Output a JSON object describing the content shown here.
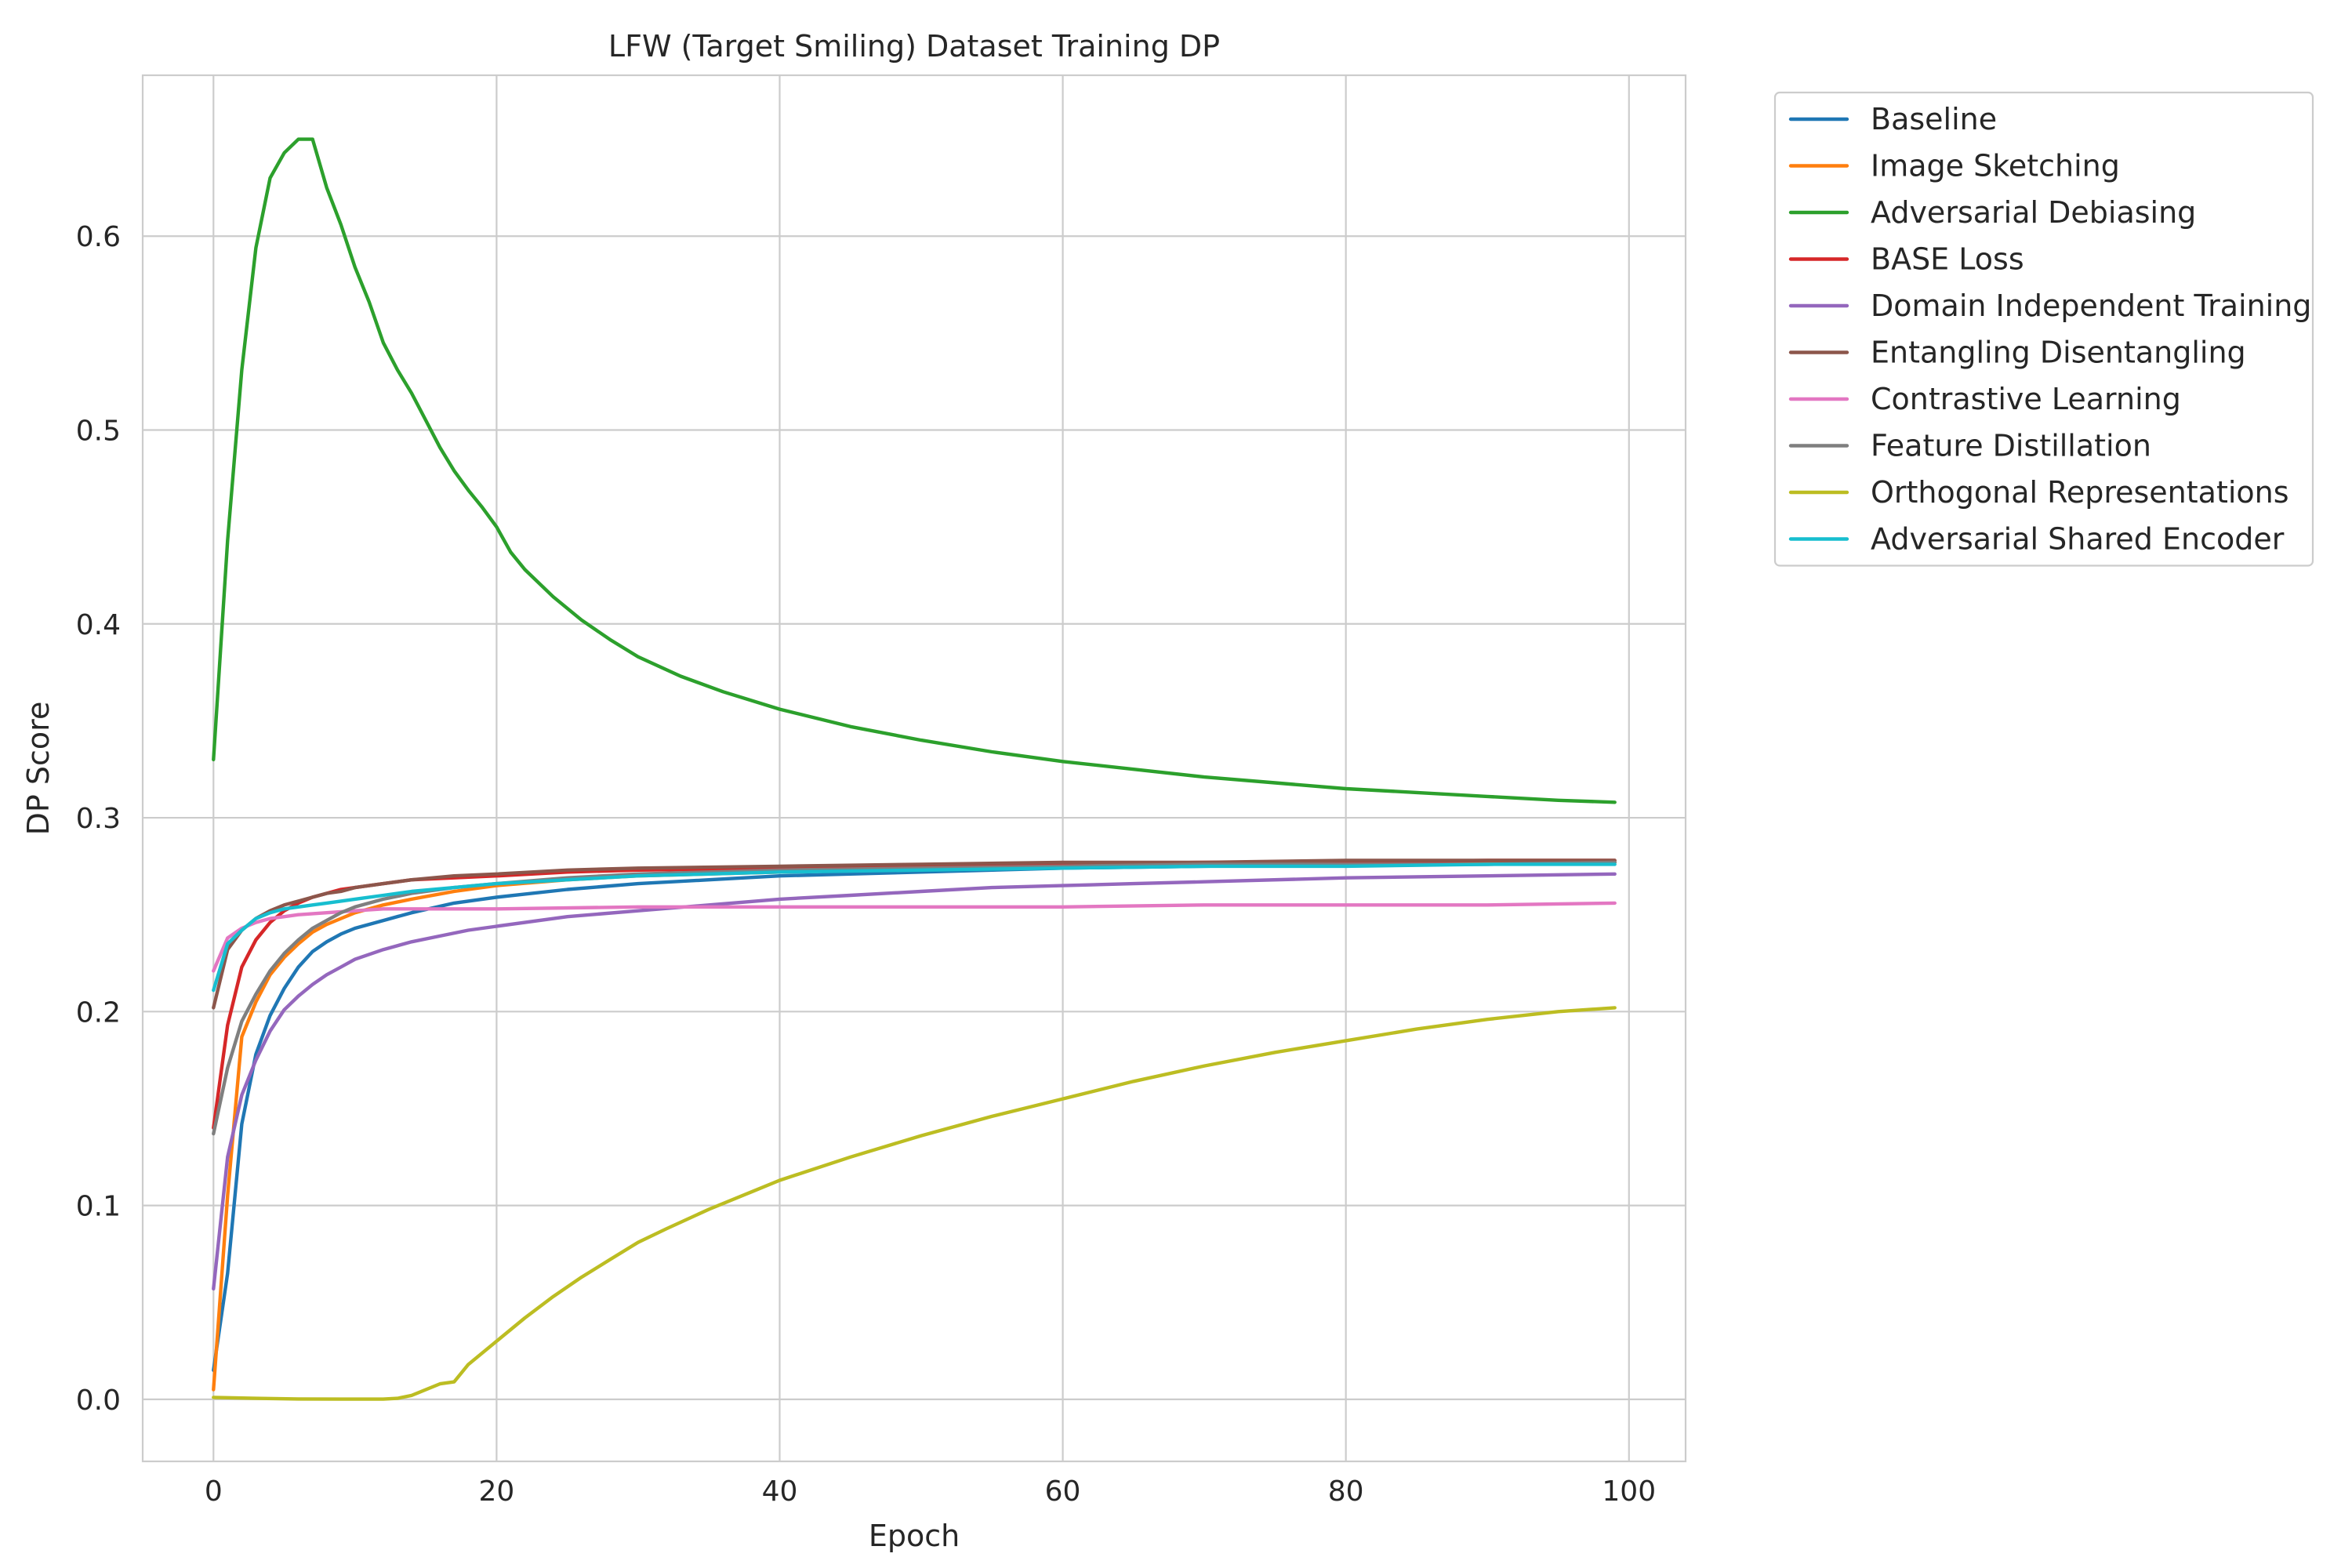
{
  "chart_data": {
    "type": "line",
    "title": "LFW (Target Smiling) Dataset Training DP",
    "xlabel": "Epoch",
    "ylabel": "DP Score",
    "xlim": [
      -5,
      104
    ],
    "ylim": [
      -0.032,
      0.683
    ],
    "xticks": [
      0,
      20,
      40,
      60,
      80,
      100
    ],
    "yticks": [
      0.0,
      0.1,
      0.2,
      0.3,
      0.4,
      0.5,
      0.6
    ],
    "ytick_labels": [
      "0.0",
      "0.1",
      "0.2",
      "0.3",
      "0.4",
      "0.5",
      "0.6"
    ],
    "grid": true,
    "legend_position": "outside-top-right",
    "series": [
      {
        "name": "Baseline",
        "color": "#1f77b4",
        "points": [
          [
            0,
            0.015
          ],
          [
            1,
            0.065
          ],
          [
            2,
            0.142
          ],
          [
            3,
            0.178
          ],
          [
            4,
            0.198
          ],
          [
            5,
            0.212
          ],
          [
            6,
            0.223
          ],
          [
            7,
            0.231
          ],
          [
            8,
            0.236
          ],
          [
            9,
            0.24
          ],
          [
            10,
            0.243
          ],
          [
            12,
            0.247
          ],
          [
            14,
            0.251
          ],
          [
            17,
            0.256
          ],
          [
            20,
            0.259
          ],
          [
            25,
            0.263
          ],
          [
            30,
            0.266
          ],
          [
            35,
            0.268
          ],
          [
            40,
            0.27
          ],
          [
            50,
            0.272
          ],
          [
            60,
            0.274
          ],
          [
            70,
            0.275
          ],
          [
            80,
            0.276
          ],
          [
            90,
            0.276
          ],
          [
            99,
            0.277
          ]
        ]
      },
      {
        "name": "Image Sketching",
        "color": "#ff7f0e",
        "points": [
          [
            0,
            0.005
          ],
          [
            1,
            0.105
          ],
          [
            2,
            0.187
          ],
          [
            3,
            0.205
          ],
          [
            4,
            0.219
          ],
          [
            5,
            0.228
          ],
          [
            6,
            0.235
          ],
          [
            7,
            0.241
          ],
          [
            8,
            0.245
          ],
          [
            9,
            0.248
          ],
          [
            10,
            0.251
          ],
          [
            12,
            0.255
          ],
          [
            14,
            0.258
          ],
          [
            17,
            0.262
          ],
          [
            20,
            0.265
          ],
          [
            25,
            0.268
          ],
          [
            30,
            0.27
          ],
          [
            35,
            0.271
          ],
          [
            40,
            0.272
          ],
          [
            50,
            0.274
          ],
          [
            60,
            0.275
          ],
          [
            70,
            0.276
          ],
          [
            80,
            0.276
          ],
          [
            90,
            0.277
          ],
          [
            99,
            0.277
          ]
        ]
      },
      {
        "name": "Adversarial Debiasing",
        "color": "#2ca02c",
        "points": [
          [
            0,
            0.33
          ],
          [
            1,
            0.443
          ],
          [
            2,
            0.531
          ],
          [
            3,
            0.594
          ],
          [
            4,
            0.63
          ],
          [
            5,
            0.643
          ],
          [
            6,
            0.65
          ],
          [
            7,
            0.65
          ],
          [
            8,
            0.625
          ],
          [
            9,
            0.606
          ],
          [
            10,
            0.584
          ],
          [
            11,
            0.566
          ],
          [
            12,
            0.545
          ],
          [
            13,
            0.531
          ],
          [
            14,
            0.519
          ],
          [
            15,
            0.505
          ],
          [
            16,
            0.491
          ],
          [
            17,
            0.479
          ],
          [
            18,
            0.469
          ],
          [
            19,
            0.46
          ],
          [
            20,
            0.45
          ],
          [
            21,
            0.437
          ],
          [
            22,
            0.428
          ],
          [
            24,
            0.414
          ],
          [
            26,
            0.402
          ],
          [
            28,
            0.392
          ],
          [
            30,
            0.383
          ],
          [
            33,
            0.373
          ],
          [
            36,
            0.365
          ],
          [
            40,
            0.356
          ],
          [
            45,
            0.347
          ],
          [
            50,
            0.34
          ],
          [
            55,
            0.334
          ],
          [
            60,
            0.329
          ],
          [
            65,
            0.325
          ],
          [
            70,
            0.321
          ],
          [
            75,
            0.318
          ],
          [
            80,
            0.315
          ],
          [
            85,
            0.313
          ],
          [
            90,
            0.311
          ],
          [
            95,
            0.309
          ],
          [
            99,
            0.308
          ]
        ]
      },
      {
        "name": "BASE Loss",
        "color": "#d62728",
        "points": [
          [
            0,
            0.14
          ],
          [
            1,
            0.193
          ],
          [
            2,
            0.223
          ],
          [
            3,
            0.237
          ],
          [
            4,
            0.246
          ],
          [
            5,
            0.252
          ],
          [
            6,
            0.256
          ],
          [
            7,
            0.259
          ],
          [
            8,
            0.261
          ],
          [
            9,
            0.263
          ],
          [
            10,
            0.264
          ],
          [
            12,
            0.266
          ],
          [
            14,
            0.268
          ],
          [
            17,
            0.269
          ],
          [
            20,
            0.27
          ],
          [
            25,
            0.272
          ],
          [
            30,
            0.273
          ],
          [
            40,
            0.274
          ],
          [
            50,
            0.275
          ],
          [
            60,
            0.276
          ],
          [
            70,
            0.277
          ],
          [
            80,
            0.277
          ],
          [
            90,
            0.278
          ],
          [
            99,
            0.278
          ]
        ]
      },
      {
        "name": "Domain Independent Training",
        "color": "#9467bd",
        "points": [
          [
            0,
            0.057
          ],
          [
            1,
            0.125
          ],
          [
            2,
            0.157
          ],
          [
            3,
            0.175
          ],
          [
            4,
            0.19
          ],
          [
            5,
            0.201
          ],
          [
            6,
            0.208
          ],
          [
            7,
            0.214
          ],
          [
            8,
            0.219
          ],
          [
            9,
            0.223
          ],
          [
            10,
            0.227
          ],
          [
            12,
            0.232
          ],
          [
            14,
            0.236
          ],
          [
            16,
            0.239
          ],
          [
            18,
            0.242
          ],
          [
            20,
            0.244
          ],
          [
            25,
            0.249
          ],
          [
            30,
            0.252
          ],
          [
            35,
            0.255
          ],
          [
            40,
            0.258
          ],
          [
            45,
            0.26
          ],
          [
            50,
            0.262
          ],
          [
            55,
            0.264
          ],
          [
            60,
            0.265
          ],
          [
            65,
            0.266
          ],
          [
            70,
            0.267
          ],
          [
            80,
            0.269
          ],
          [
            90,
            0.27
          ],
          [
            99,
            0.271
          ]
        ]
      },
      {
        "name": "Entangling Disentangling",
        "color": "#8c564b",
        "points": [
          [
            0,
            0.202
          ],
          [
            1,
            0.232
          ],
          [
            2,
            0.242
          ],
          [
            3,
            0.248
          ],
          [
            4,
            0.252
          ],
          [
            5,
            0.255
          ],
          [
            6,
            0.257
          ],
          [
            7,
            0.259
          ],
          [
            8,
            0.261
          ],
          [
            9,
            0.262
          ],
          [
            10,
            0.264
          ],
          [
            12,
            0.266
          ],
          [
            14,
            0.268
          ],
          [
            17,
            0.27
          ],
          [
            20,
            0.271
          ],
          [
            25,
            0.273
          ],
          [
            30,
            0.274
          ],
          [
            40,
            0.275
          ],
          [
            50,
            0.276
          ],
          [
            60,
            0.277
          ],
          [
            70,
            0.277
          ],
          [
            80,
            0.278
          ],
          [
            90,
            0.278
          ],
          [
            99,
            0.278
          ]
        ]
      },
      {
        "name": "Contrastive Learning",
        "color": "#e377c2",
        "points": [
          [
            0,
            0.221
          ],
          [
            1,
            0.238
          ],
          [
            2,
            0.243
          ],
          [
            3,
            0.246
          ],
          [
            4,
            0.248
          ],
          [
            5,
            0.249
          ],
          [
            6,
            0.25
          ],
          [
            8,
            0.251
          ],
          [
            10,
            0.252
          ],
          [
            12,
            0.253
          ],
          [
            15,
            0.253
          ],
          [
            20,
            0.253
          ],
          [
            30,
            0.254
          ],
          [
            40,
            0.254
          ],
          [
            50,
            0.254
          ],
          [
            60,
            0.254
          ],
          [
            70,
            0.255
          ],
          [
            80,
            0.255
          ],
          [
            90,
            0.255
          ],
          [
            99,
            0.256
          ]
        ]
      },
      {
        "name": "Feature Distillation",
        "color": "#7f7f7f",
        "points": [
          [
            0,
            0.137
          ],
          [
            1,
            0.171
          ],
          [
            2,
            0.195
          ],
          [
            3,
            0.209
          ],
          [
            4,
            0.221
          ],
          [
            5,
            0.23
          ],
          [
            6,
            0.237
          ],
          [
            7,
            0.243
          ],
          [
            8,
            0.247
          ],
          [
            9,
            0.251
          ],
          [
            10,
            0.254
          ],
          [
            12,
            0.258
          ],
          [
            14,
            0.261
          ],
          [
            17,
            0.264
          ],
          [
            20,
            0.266
          ],
          [
            25,
            0.269
          ],
          [
            30,
            0.271
          ],
          [
            35,
            0.272
          ],
          [
            40,
            0.273
          ],
          [
            50,
            0.274
          ],
          [
            60,
            0.275
          ],
          [
            70,
            0.276
          ],
          [
            80,
            0.276
          ],
          [
            90,
            0.276
          ],
          [
            99,
            0.277
          ]
        ]
      },
      {
        "name": "Orthogonal Representations",
        "color": "#bcbd22",
        "points": [
          [
            0,
            0.001
          ],
          [
            3,
            0.0005
          ],
          [
            6,
            0.0002
          ],
          [
            9,
            0.0001
          ],
          [
            12,
            0.0001
          ],
          [
            13,
            0.0005
          ],
          [
            14,
            0.002
          ],
          [
            15,
            0.005
          ],
          [
            16,
            0.008
          ],
          [
            17,
            0.009
          ],
          [
            18,
            0.018
          ],
          [
            20,
            0.03
          ],
          [
            22,
            0.042
          ],
          [
            24,
            0.053
          ],
          [
            26,
            0.063
          ],
          [
            28,
            0.072
          ],
          [
            30,
            0.081
          ],
          [
            32,
            0.088
          ],
          [
            35,
            0.098
          ],
          [
            38,
            0.107
          ],
          [
            40,
            0.113
          ],
          [
            45,
            0.125
          ],
          [
            50,
            0.136
          ],
          [
            55,
            0.146
          ],
          [
            60,
            0.155
          ],
          [
            65,
            0.164
          ],
          [
            70,
            0.172
          ],
          [
            75,
            0.179
          ],
          [
            80,
            0.185
          ],
          [
            85,
            0.191
          ],
          [
            90,
            0.196
          ],
          [
            95,
            0.2
          ],
          [
            99,
            0.202
          ]
        ]
      },
      {
        "name": "Adversarial Shared Encoder",
        "color": "#17becf",
        "points": [
          [
            0,
            0.211
          ],
          [
            1,
            0.235
          ],
          [
            2,
            0.242
          ],
          [
            3,
            0.248
          ],
          [
            4,
            0.251
          ],
          [
            5,
            0.253
          ],
          [
            6,
            0.254
          ],
          [
            7,
            0.255
          ],
          [
            8,
            0.256
          ],
          [
            9,
            0.257
          ],
          [
            10,
            0.258
          ],
          [
            12,
            0.26
          ],
          [
            14,
            0.262
          ],
          [
            17,
            0.264
          ],
          [
            20,
            0.266
          ],
          [
            25,
            0.268
          ],
          [
            30,
            0.27
          ],
          [
            40,
            0.272
          ],
          [
            50,
            0.273
          ],
          [
            60,
            0.274
          ],
          [
            70,
            0.275
          ],
          [
            80,
            0.275
          ],
          [
            90,
            0.276
          ],
          [
            99,
            0.276
          ]
        ]
      }
    ]
  }
}
